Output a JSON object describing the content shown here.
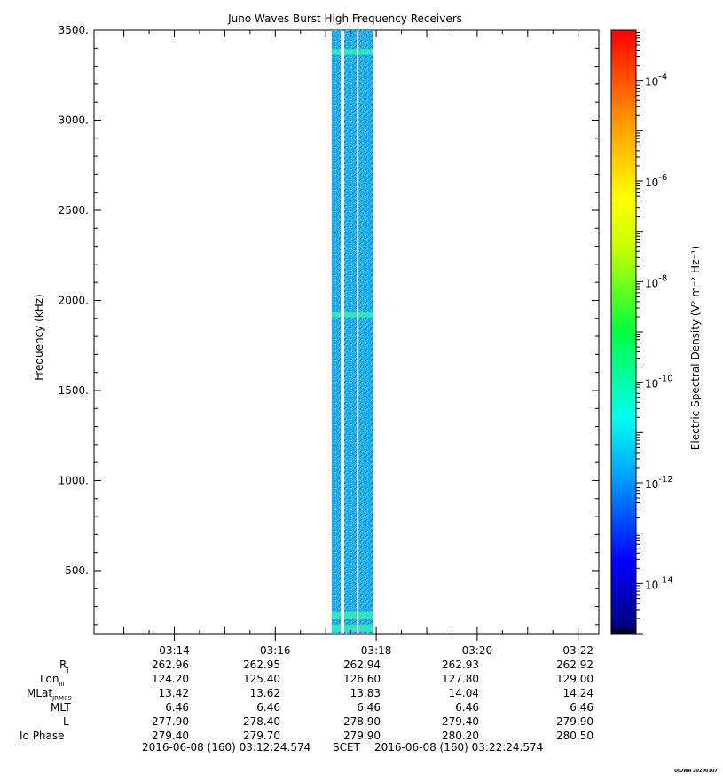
{
  "chart_data": {
    "type": "heatmap",
    "title": "Juno Waves Burst High Frequency Receivers",
    "ylabel": "Frequency (kHz)",
    "ylim": [
      150,
      3500
    ],
    "yticks": [
      500,
      1000,
      1500,
      2000,
      2500,
      3000,
      3500
    ],
    "ytick_labels": [
      "500.",
      "1000.",
      "1500.",
      "2000.",
      "2500.",
      "3000.",
      "3500."
    ],
    "xlim_minutes": [
      0,
      10
    ],
    "xticks": [
      "03:14",
      "03:16",
      "03:18",
      "03:20",
      "03:22"
    ],
    "time_range": {
      "start": "03:12:24.574",
      "end": "03:22:24.574"
    },
    "data_bursts": [
      {
        "start": "03:17:07",
        "end": "03:17:18"
      },
      {
        "start": "03:17:22",
        "end": "03:17:37"
      },
      {
        "start": "03:17:39",
        "end": "03:17:56"
      }
    ],
    "emission_bands_khz": [
      180,
      250,
      1920,
      3380
    ],
    "background_level": "1e-12",
    "colorbar": {
      "label": "Electric Spectral Density (V² m⁻² Hz⁻¹)",
      "scale": "log",
      "range": [
        "1e-15",
        "1e-3"
      ],
      "tick_exponents": [
        -4,
        -6,
        -8,
        -10,
        -12,
        -14
      ],
      "tick_labels": [
        "10",
        "10",
        "10",
        "10",
        "10",
        "10"
      ],
      "tick_sup": [
        "-4",
        "-6",
        "-8",
        "-10",
        "-12",
        "-14"
      ]
    }
  },
  "ephemeris": {
    "rows": [
      {
        "label": "R",
        "sub": "J",
        "values": [
          "262.96",
          "262.95",
          "262.94",
          "262.93",
          "262.92"
        ]
      },
      {
        "label": "Lon",
        "sub": "III",
        "values": [
          "124.20",
          "125.40",
          "126.60",
          "127.80",
          "129.00"
        ]
      },
      {
        "label": "MLat",
        "sub": "JRM09",
        "values": [
          "13.42",
          "13.62",
          "13.83",
          "14.04",
          "14.24"
        ]
      },
      {
        "label": "MLT",
        "sub": "",
        "values": [
          "6.46",
          "6.46",
          "6.46",
          "6.46",
          "6.46"
        ]
      },
      {
        "label": "L",
        "sub": "",
        "values": [
          "277.90",
          "278.40",
          "278.90",
          "279.40",
          "279.90"
        ]
      },
      {
        "label": "Io Phase",
        "sub": "",
        "values": [
          "279.40",
          "279.70",
          "279.90",
          "280.20",
          "280.50"
        ]
      }
    ]
  },
  "footer": {
    "start": "2016-06-08 (160) 03:12:24.574",
    "mid": "SCET",
    "end": "2016-06-08 (160) 03:22:24.574"
  },
  "stamp": "UIOWA 20200307"
}
